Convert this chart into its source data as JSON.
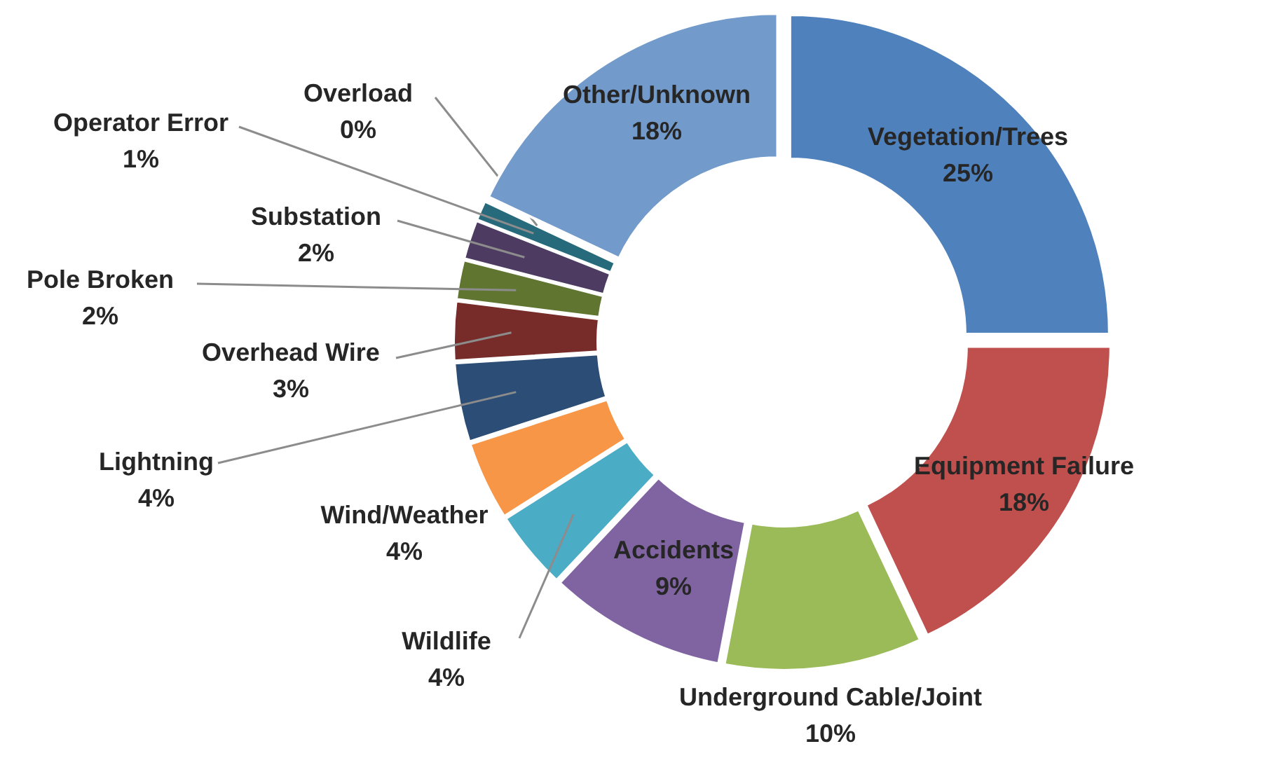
{
  "chart_data": {
    "type": "donut",
    "categories": [
      "Vegetation/Trees",
      "Equipment Failure",
      "Underground Cable/Joint",
      "Accidents",
      "Wildlife",
      "Wind/Weather",
      "Lightning",
      "Overhead Wire",
      "Pole Broken",
      "Substation",
      "Operator Error",
      "Overload",
      "Other/Unknown"
    ],
    "values": [
      25,
      18,
      10,
      9,
      4,
      4,
      4,
      3,
      2,
      2,
      1,
      0,
      18
    ],
    "value_labels": [
      "25%",
      "18%",
      "10%",
      "9%",
      "4%",
      "4%",
      "4%",
      "3%",
      "2%",
      "2%",
      "1%",
      "0%",
      "18%"
    ],
    "colors": [
      "#4f81bd",
      "#c0504d",
      "#9bbb59",
      "#8064a2",
      "#4bacc6",
      "#f79646",
      "#2c4d75",
      "#772c2a",
      "#5f7530",
      "#4d3b62",
      "#276a7c",
      "#e46c0a",
      "#729aca"
    ]
  }
}
